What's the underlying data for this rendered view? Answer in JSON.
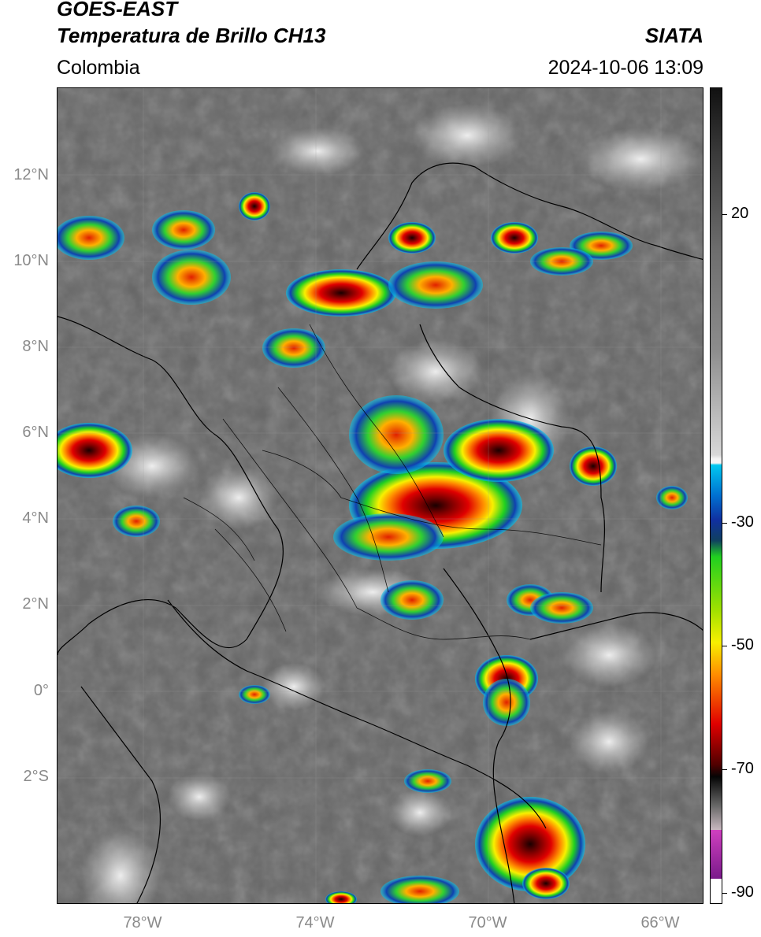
{
  "header": {
    "title_line1": "GOES-EAST",
    "title_line2": "Temperatura de Brillo CH13",
    "organization": "SIATA",
    "region": "Colombia",
    "timestamp": "2024-10-06 13:09"
  },
  "map": {
    "lat_ticks": [
      "12°N",
      "10°N",
      "8°N",
      "6°N",
      "4°N",
      "2°N",
      "0°",
      "2°S"
    ],
    "lon_ticks": [
      "78°W",
      "74°W",
      "70°W",
      "66°W"
    ],
    "extent": {
      "lon_min": -80.0,
      "lon_max": -65.0,
      "lat_min": -4.9,
      "lat_max": 14.0
    },
    "background_color": "#6a6a6a"
  },
  "colorbar": {
    "ticks": [
      "20",
      "-30",
      "-50",
      "-70",
      "-90"
    ],
    "range": [
      -92,
      35
    ],
    "colors": {
      "warm_dark": "#111111",
      "warm_gray": "#8c8c8c",
      "cold_white": "#f4f4f4",
      "cyan": "#00c8f0",
      "blue": "#1030a0",
      "green": "#20d020",
      "yellow": "#f8f000",
      "orange": "#ff8c00",
      "red": "#e00000",
      "dark_red": "#500000",
      "magenta": "#d040c0",
      "purple": "#7a1a8a"
    }
  }
}
